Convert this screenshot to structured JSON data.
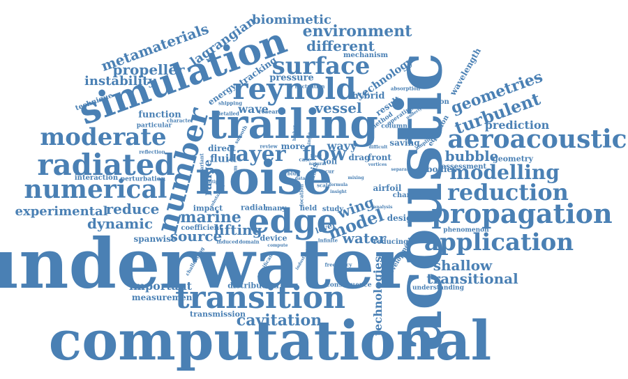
{
  "color": "#4a80b4",
  "words": {
    "underwater": "underwater",
    "computational": "computational",
    "acoustic": "acoustic",
    "noise": "noise",
    "trailing": "trailing",
    "simulation": "simulation",
    "edge": "edge",
    "transition": "transition",
    "number": "number",
    "reynold": "reynold",
    "surface": "surface",
    "aeroacoustic": "aeroacoustic",
    "propagation": "propagation",
    "application": "application",
    "radiated": "radiated",
    "numerical": "numerical",
    "moderate": "moderate",
    "reduction": "reduction",
    "modelling": "modelling",
    "layer": "layer",
    "flow": "flow",
    "metamaterials": "metamaterials",
    "environment": "environment",
    "different": "different",
    "biomimetic": "biomimetic",
    "lagrangian": "lagrangian",
    "propeller": "propeller",
    "instability": "instability",
    "cavitation": "cavitation",
    "transitional": "transitional",
    "shallow": "shallow",
    "marine": "marine",
    "source": "source",
    "lifting": "lifting",
    "model": "model",
    "wing": "wing",
    "water": "water",
    "turbulent": "turbulent",
    "geometries": "geometries",
    "prediction": "prediction",
    "bubble": "bubble",
    "experimental": "experimental",
    "reduce": "reduce",
    "dynamic": "dynamic",
    "important": "important",
    "measurement": "measurement",
    "technologies": "technologies",
    "vessel": "vessel",
    "wave": "wave",
    "pressure": "pressure",
    "tracking": "tracking",
    "energy": "energy",
    "technology": "technology",
    "hybrid": "hybrid",
    "result": "result",
    "wavelength": "wavelength",
    "range": "range",
    "fluid": "fluid",
    "wavy": "wavy",
    "drag": "drag",
    "front": "front",
    "basis": "basis",
    "foil": "foil",
    "direct": "direct",
    "more": "more",
    "function": "function",
    "technique": "technique",
    "mechanism": "mechanism",
    "saving": "saving",
    "bodies": "bodies",
    "airfoil": "airfoil",
    "geometry": "geometry",
    "assessment": "assessment",
    "change": "change",
    "design": "design",
    "phenomenon": "phenomenon",
    "reducing": "reducing",
    "development": "development",
    "understanding": "understanding",
    "distribution": "distribution",
    "consequence": "consequence",
    "transmission": "transmission",
    "spanwise": "spanwise",
    "coefficient": "coefficient",
    "impact": "impact",
    "radial": "radial",
    "many": "many",
    "field": "field",
    "study": "study",
    "device": "device",
    "level": "level",
    "interaction": "interaction",
    "perturbation": "perturbation",
    "particular": "particular",
    "reflection": "reflection",
    "character": "character",
    "shipping": "shipping",
    "detailed": "detailed",
    "research": "research",
    "fluctuation": "fluctuation",
    "absorption": "absorption",
    "separation": "separation",
    "operating": "operating",
    "underlying": "underlying",
    "amplitude": "amplitude",
    "equation": "equation",
    "column": "column",
    "method": "method",
    "induced": "induced",
    "domain": "domain",
    "compute": "compute",
    "infinite": "infinite",
    "frequency": "frequency",
    "significant": "significant",
    "challenging": "challenging",
    "variant": "variant",
    "smooth": "smooth",
    "review": "review",
    "problem": "problem",
    "location": "location",
    "scale": "scale",
    "formula": "formula",
    "insight": "insight",
    "separate": "separate",
    "difficult": "difficult",
    "analysis": "analysis",
    "natural": "natural",
    "industrial": "industrial",
    "bluff": "bluff",
    "case": "case",
    "occur": "occur",
    "mixing": "mixing",
    "higher": "higher",
    "body": "body",
    "data": "data",
    "single": "single",
    "vortices": "vortices",
    "multiple": "multiple",
    "substantial": "substantial"
  }
}
